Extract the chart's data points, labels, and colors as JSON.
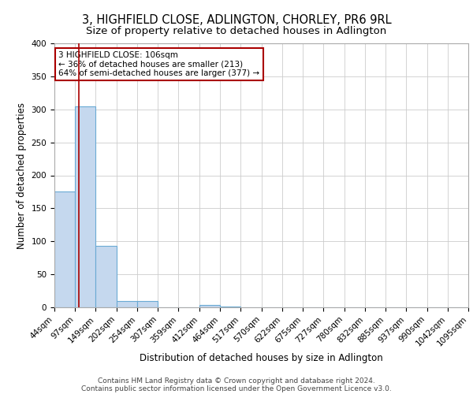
{
  "title1": "3, HIGHFIELD CLOSE, ADLINGTON, CHORLEY, PR6 9RL",
  "title2": "Size of property relative to detached houses in Adlington",
  "xlabel": "Distribution of detached houses by size in Adlington",
  "ylabel": "Number of detached properties",
  "bin_edges": [
    44,
    97,
    149,
    202,
    254,
    307,
    359,
    412,
    464,
    517,
    570,
    622,
    675,
    727,
    780,
    832,
    885,
    937,
    990,
    1042,
    1095
  ],
  "bar_heights": [
    175,
    305,
    93,
    10,
    10,
    0,
    0,
    4,
    1,
    0,
    0,
    0,
    0,
    0,
    0,
    0,
    0,
    0,
    0,
    0
  ],
  "bar_color": "#c5d8ee",
  "bar_edge_color": "#6aaad4",
  "property_size": 106,
  "vline_color": "#aa0000",
  "annotation_line1": "3 HIGHFIELD CLOSE: 106sqm",
  "annotation_line2": "← 36% of detached houses are smaller (213)",
  "annotation_line3": "64% of semi-detached houses are larger (377) →",
  "annotation_box_color": "#ffffff",
  "annotation_box_edge_color": "#aa0000",
  "ylim": [
    0,
    400
  ],
  "yticks": [
    0,
    50,
    100,
    150,
    200,
    250,
    300,
    350,
    400
  ],
  "grid_color": "#cccccc",
  "background_color": "#ffffff",
  "footer1": "Contains HM Land Registry data © Crown copyright and database right 2024.",
  "footer2": "Contains public sector information licensed under the Open Government Licence v3.0.",
  "title1_fontsize": 10.5,
  "title2_fontsize": 9.5,
  "axis_label_fontsize": 8.5,
  "tick_fontsize": 7.5,
  "annotation_fontsize": 7.5,
  "footer_fontsize": 6.5
}
